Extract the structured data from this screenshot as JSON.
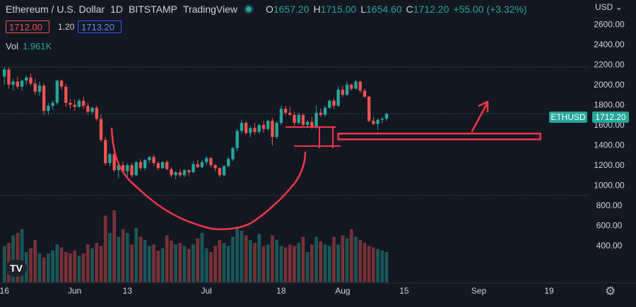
{
  "header": {
    "symbol": "Ethereum / U.S. Dollar",
    "interval": "1D",
    "exchange": "BITSTAMP",
    "source": "TradingView",
    "open_label": "O",
    "open": "1657.20",
    "high_label": "H",
    "high": "1715.00",
    "low_label": "L",
    "low": "1654.60",
    "close_label": "C",
    "close": "1712.20",
    "change": "+55.00 (+3.32%)",
    "bid": "1712.00",
    "spread": "1.20",
    "ask": "1713.20",
    "volume_label": "Vol",
    "volume": "1.961K"
  },
  "currency_selector": "USD",
  "price_tag": {
    "symbol": "ETHUSD",
    "price": "1712.20",
    "color": "#26a69a"
  },
  "colors": {
    "up": "#26a69a",
    "down": "#ef5350",
    "background": "#131722",
    "annotation": "#f23645"
  },
  "icons": [
    "tradingview-logo-icon",
    "gear-icon",
    "chevron-down-icon"
  ],
  "chart_data": {
    "type": "candlestick",
    "y_axis": {
      "ticks": [
        400,
        600,
        800,
        1000,
        1200,
        1400,
        1600,
        1800,
        2000,
        2200,
        2400,
        2600
      ],
      "tick_labels": [
        "400.00",
        "600.00",
        "800.00",
        "1000.00",
        "1200.00",
        "1400.00",
        "1600.00",
        "1800.00",
        "2000.00",
        "2200.00",
        "2400.00",
        "2600.00"
      ],
      "range": [
        190,
        2680
      ]
    },
    "x_axis": {
      "tick_labels": [
        "16",
        "Jun",
        "13",
        "Jul",
        "18",
        "Aug",
        "15",
        "Sep",
        "19"
      ],
      "tick_days": [
        0,
        16,
        28,
        46,
        63,
        77,
        91,
        108,
        124
      ],
      "range_days": [
        -1,
        133
      ],
      "day0": "May 16"
    },
    "horizontal_lines": [
      2175,
      900,
      1712.2
    ],
    "candles": [
      [
        2080,
        2180,
        2000,
        2150
      ],
      [
        2150,
        2170,
        1960,
        2000
      ],
      [
        2000,
        2060,
        1940,
        2030
      ],
      [
        2030,
        2080,
        1960,
        1980
      ],
      [
        1980,
        2050,
        1940,
        2040
      ],
      [
        2040,
        2090,
        2000,
        2070
      ],
      [
        2070,
        2110,
        1990,
        2010
      ],
      [
        2010,
        2060,
        1900,
        1930
      ],
      [
        1930,
        2030,
        1890,
        1990
      ],
      [
        1990,
        2010,
        1700,
        1740
      ],
      [
        1740,
        1820,
        1700,
        1790
      ],
      [
        1790,
        1840,
        1750,
        1820
      ],
      [
        1820,
        2050,
        1800,
        2040
      ],
      [
        2040,
        2050,
        1950,
        1980
      ],
      [
        1980,
        2010,
        1780,
        1820
      ],
      [
        1820,
        1860,
        1760,
        1800
      ],
      [
        1800,
        1850,
        1740,
        1780
      ],
      [
        1780,
        1860,
        1770,
        1840
      ],
      [
        1840,
        1880,
        1760,
        1790
      ],
      [
        1790,
        1820,
        1700,
        1730
      ],
      [
        1730,
        1780,
        1710,
        1770
      ],
      [
        1770,
        1790,
        1640,
        1660
      ],
      [
        1660,
        1700,
        1430,
        1450
      ],
      [
        1450,
        1480,
        1200,
        1220
      ],
      [
        1220,
        1320,
        1190,
        1310
      ],
      [
        1310,
        1340,
        1130,
        1150
      ],
      [
        1150,
        1220,
        1070,
        1200
      ],
      [
        1200,
        1240,
        1120,
        1140
      ],
      [
        1140,
        1220,
        1060,
        1200
      ],
      [
        1200,
        1220,
        1080,
        1100
      ],
      [
        1100,
        1240,
        1090,
        1230
      ],
      [
        1230,
        1260,
        1150,
        1170
      ],
      [
        1170,
        1260,
        1150,
        1250
      ],
      [
        1250,
        1290,
        1220,
        1280
      ],
      [
        1280,
        1300,
        1190,
        1220
      ],
      [
        1220,
        1240,
        1150,
        1170
      ],
      [
        1170,
        1240,
        1160,
        1230
      ],
      [
        1230,
        1250,
        1150,
        1160
      ],
      [
        1160,
        1180,
        1080,
        1100
      ],
      [
        1100,
        1140,
        1060,
        1130
      ],
      [
        1130,
        1160,
        1080,
        1100
      ],
      [
        1100,
        1160,
        1080,
        1150
      ],
      [
        1150,
        1160,
        1090,
        1130
      ],
      [
        1130,
        1240,
        1120,
        1210
      ],
      [
        1210,
        1250,
        1170,
        1180
      ],
      [
        1180,
        1250,
        1170,
        1230
      ],
      [
        1230,
        1290,
        1200,
        1270
      ],
      [
        1270,
        1280,
        1180,
        1200
      ],
      [
        1200,
        1210,
        1140,
        1170
      ],
      [
        1170,
        1180,
        1080,
        1100
      ],
      [
        1100,
        1200,
        1090,
        1190
      ],
      [
        1190,
        1280,
        1180,
        1260
      ],
      [
        1260,
        1380,
        1240,
        1370
      ],
      [
        1370,
        1560,
        1340,
        1540
      ],
      [
        1540,
        1650,
        1510,
        1620
      ],
      [
        1620,
        1640,
        1500,
        1520
      ],
      [
        1520,
        1590,
        1480,
        1570
      ],
      [
        1570,
        1620,
        1500,
        1530
      ],
      [
        1530,
        1610,
        1510,
        1600
      ],
      [
        1600,
        1640,
        1520,
        1560
      ],
      [
        1560,
        1650,
        1540,
        1640
      ],
      [
        1640,
        1670,
        1390,
        1480
      ],
      [
        1480,
        1640,
        1460,
        1620
      ],
      [
        1620,
        1790,
        1600,
        1760
      ],
      [
        1760,
        1790,
        1700,
        1720
      ],
      [
        1720,
        1780,
        1690,
        1700
      ],
      [
        1700,
        1730,
        1590,
        1620
      ],
      [
        1620,
        1720,
        1600,
        1700
      ],
      [
        1700,
        1710,
        1580,
        1600
      ],
      [
        1600,
        1650,
        1570,
        1630
      ],
      [
        1630,
        1680,
        1560,
        1580
      ],
      [
        1580,
        1790,
        1560,
        1720
      ],
      [
        1720,
        1760,
        1680,
        1700
      ],
      [
        1700,
        1790,
        1680,
        1770
      ],
      [
        1770,
        1850,
        1760,
        1840
      ],
      [
        1840,
        1860,
        1760,
        1790
      ],
      [
        1790,
        1980,
        1780,
        1950
      ],
      [
        1950,
        1990,
        1880,
        1900
      ],
      [
        1900,
        2030,
        1890,
        2000
      ],
      [
        2000,
        2010,
        1940,
        1960
      ],
      [
        1960,
        2050,
        1950,
        2030
      ],
      [
        2030,
        2040,
        1920,
        1940
      ],
      [
        1940,
        1960,
        1870,
        1880
      ],
      [
        1880,
        1890,
        1630,
        1640
      ],
      [
        1640,
        1680,
        1600,
        1610
      ],
      [
        1610,
        1670,
        1550,
        1650
      ],
      [
        1650,
        1680,
        1620,
        1660
      ],
      [
        1660,
        1720,
        1640,
        1710
      ]
    ],
    "volume": {
      "unit": "raw",
      "values": [
        480,
        520,
        620,
        650,
        700,
        400,
        450,
        560,
        380,
        330,
        380,
        420,
        500,
        460,
        400,
        380,
        420,
        350,
        380,
        500,
        450,
        520,
        480,
        880,
        650,
        950,
        600,
        700,
        650,
        500,
        720,
        600,
        560,
        480,
        500,
        420,
        450,
        620,
        550,
        500,
        520,
        480,
        440,
        500,
        580,
        650,
        450,
        400,
        480,
        560,
        520,
        480,
        600,
        720,
        680,
        620,
        560,
        520,
        640,
        480,
        500,
        620,
        560,
        480,
        460,
        500,
        480,
        520,
        600,
        400,
        500,
        600,
        540,
        500,
        480,
        600,
        500,
        620,
        580,
        700,
        600,
        560,
        520,
        480,
        460,
        440,
        420,
        400
      ]
    },
    "annotations": [
      {
        "type": "curve",
        "label": "cup",
        "color": "#f23645"
      },
      {
        "type": "rectangle",
        "label": "handle",
        "color": "#f23645"
      },
      {
        "type": "rectangle",
        "label": "support-zone",
        "price_range": [
          1470,
          1500
        ],
        "day_range": [
          76,
          122
        ],
        "color": "#f23645"
      },
      {
        "type": "arrow",
        "label": "up-arrow",
        "color": "#f23645"
      }
    ]
  }
}
